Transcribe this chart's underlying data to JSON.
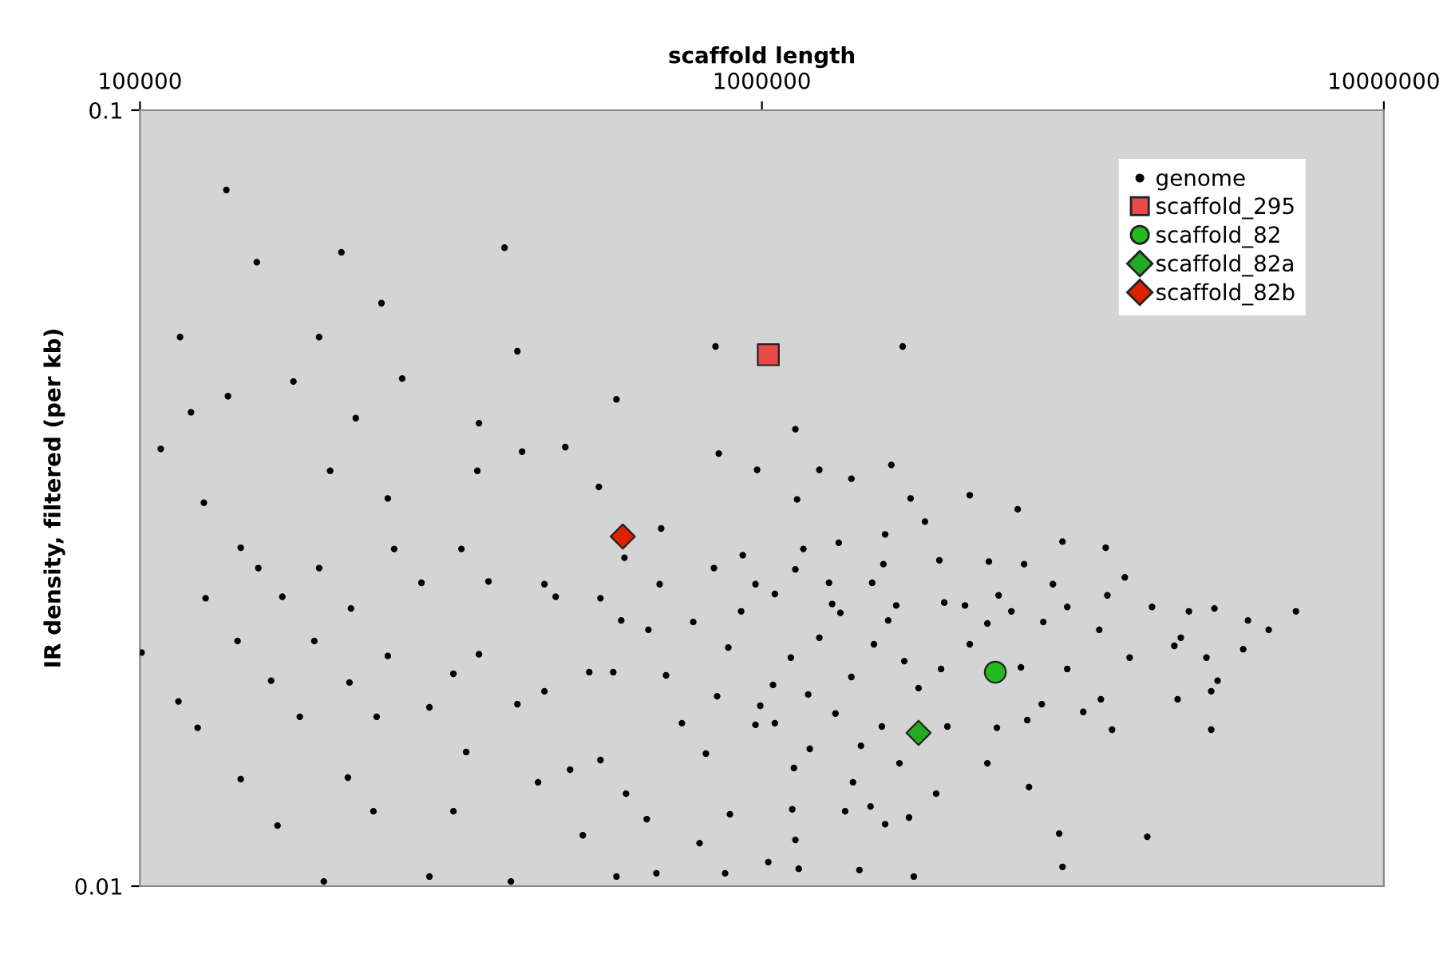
{
  "chart_data": {
    "type": "scatter",
    "xlabel": "scaffold length",
    "ylabel": "IR density, filtered (per kb)",
    "log": "xy",
    "xlim": [
      100000,
      10000000
    ],
    "xticks": [
      100000,
      1000000,
      10000000
    ],
    "ylim": [
      0.01,
      0.1
    ],
    "yticks": [
      0.1,
      0.01
    ],
    "grid": false,
    "legend": "top right",
    "series": [
      {
        "name": "genome",
        "color": "#000000",
        "marker": "circle",
        "x": [
          137700,
          154100,
          210800,
          385600,
          116000,
          194100,
          244500,
          264000,
          404400,
          842200,
          1684000,
          583600,
          138500,
          176500,
          120800,
          108000,
          126700,
          145200,
          155000,
          222300,
          350800,
          202200,
          250300,
          348700,
          411600,
          482900,
          546800,
          688700,
          852300,
          982400,
          601100,
          931600,
          100600,
          115300,
          123800,
          145200,
          166400,
          197500,
          127500,
          143500,
          162500,
          169400,
          194100,
          218400,
          190700,
          217200,
          180700,
          215900,
          240200,
          237300,
          292000,
          256300,
          283500,
          250300,
          292000,
          328700,
          363400,
          319100,
          334600,
          319100,
          394900,
          350800,
          404400,
          447000,
          466000,
          447000,
          436600,
          515300,
          583600,
          491600,
          527700,
          550000,
          594000,
          576700,
          550000,
          604700,
          656800,
          701300,
          743800,
          812800,
          652900,
          676600,
          793900,
          888300,
          872700,
          883000,
          926100,
          775500,
          684800,
          837300,
          976500,
          976500,
          847200,
          1132000,
          1615000,
          1237000,
          1393000,
          1139000,
          1734000,
          2159000,
          2578000,
          1829000,
          1578000,
          1329000,
          1166000,
          1132000,
          1568000,
          1929000,
          2317000,
          2640000,
          3043000,
          3571000,
          3833000,
          3593000,
          2937000,
          2402000,
          1504000,
          1282000,
          1049000,
          1297000,
          1644000,
          1964000,
          2121000,
          2518000,
          3097000,
          4239000,
          4859000,
          5341000,
          7222000,
          6047000,
          6529000,
          5941000,
          4716000,
          5185000,
          5278000,
          5278000,
          4660000,
          3902000,
          3487000,
          3508000,
          3656000,
          3097000,
          2834000,
          2609000,
          2304000,
          2159000,
          1941000,
          1786000,
          1559000,
          1393000,
          1514000,
          1694000,
          1596000,
          1337000,
          1237000,
          1113000,
          1042000,
          994000,
          1049000,
          1187000,
          1313000,
          1443000,
          1664000,
          1987000,
          2387000,
          2671000,
          2818000,
          3286000,
          2304000,
          2688000,
          1906000,
          1724000,
          1194000,
          1126000,
          1401000,
          1495000,
          1578000,
          1361000,
          1119000,
          1132000,
          1024000,
          1146000,
          1435000,
          1755000,
          3006000,
          3043000,
          4165000,
          4604000,
          5404000
        ],
        "values": [
          0.0789,
          0.0637,
          0.0656,
          0.0665,
          0.051,
          0.051,
          0.0564,
          0.0451,
          0.0489,
          0.0496,
          0.0496,
          0.0424,
          0.0428,
          0.0447,
          0.0408,
          0.0366,
          0.0312,
          0.0273,
          0.0257,
          0.0401,
          0.0395,
          0.0343,
          0.0316,
          0.0343,
          0.0363,
          0.0368,
          0.0327,
          0.0289,
          0.0361,
          0.0344,
          0.0265,
          0.0267,
          0.02,
          0.0173,
          0.016,
          0.01374,
          0.01197,
          0.01014,
          0.0235,
          0.0207,
          0.0184,
          0.0236,
          0.0257,
          0.0228,
          0.0207,
          0.0183,
          0.01653,
          0.0138,
          0.01653,
          0.01249,
          0.01029,
          0.0272,
          0.0246,
          0.0198,
          0.017,
          0.0272,
          0.0247,
          0.01878,
          0.01489,
          0.01249,
          0.01014,
          0.0199,
          0.01716,
          0.0245,
          0.0236,
          0.01783,
          0.01361,
          0.01163,
          0.01029,
          0.01413,
          0.01887,
          0.0235,
          0.022,
          0.01887,
          0.01454,
          0.01316,
          0.0214,
          0.01869,
          0.01622,
          0.01482,
          0.0122,
          0.01039,
          0.01136,
          0.01238,
          0.01039,
          0.0203,
          0.0226,
          0.0219,
          0.0245,
          0.0257,
          0.0245,
          0.01614,
          0.01757,
          0.0388,
          0.0349,
          0.0344,
          0.0335,
          0.0315,
          0.0316,
          0.0319,
          0.0306,
          0.0295,
          0.0284,
          0.0277,
          0.0272,
          0.0256,
          0.026,
          0.0263,
          0.0262,
          0.026,
          0.0278,
          0.0273,
          0.025,
          0.0237,
          0.0245,
          0.0237,
          0.0246,
          0.0246,
          0.0238,
          0.0231,
          0.023,
          0.0232,
          0.023,
          0.0226,
          0.0229,
          0.0229,
          0.0226,
          0.0228,
          0.0226,
          0.022,
          0.0214,
          0.0202,
          0.0209,
          0.0197,
          0.01783,
          0.01591,
          0.01741,
          0.0197,
          0.0214,
          0.01741,
          0.01591,
          0.01905,
          0.0219,
          0.01914,
          0.0218,
          0.0205,
          0.01905,
          0.018,
          0.01606,
          0.0186,
          0.0205,
          0.0195,
          0.022,
          0.0225,
          0.0209,
          0.0197,
          0.01817,
          0.01708,
          0.01622,
          0.01766,
          0.01669,
          0.01517,
          0.0144,
          0.01606,
          0.016,
          0.01637,
          0.01716,
          0.01677,
          0.0144,
          0.01342,
          0.01316,
          0.01226,
          0.01503,
          0.0142,
          0.01361,
          0.01267,
          0.01202,
          0.01249,
          0.01256,
          0.01147,
          0.01074,
          0.01053,
          0.01049,
          0.01029,
          0.01169,
          0.01059,
          0.01158,
          0.0204,
          0.0184
        ]
      },
      {
        "name": "scaffold_295",
        "color": "#e84a4a",
        "marker": "square",
        "x": [
          1024000
        ],
        "values": [
          0.0484
        ]
      },
      {
        "name": "scaffold_82",
        "color": "#22bb22",
        "marker": "circle",
        "x": [
          2373000
        ],
        "values": [
          0.01887
        ]
      },
      {
        "name": "scaffold_82a",
        "color": "#22aa22",
        "marker": "diamond",
        "x": [
          1786000
        ],
        "values": [
          0.01576
        ]
      },
      {
        "name": "scaffold_82b",
        "color": "#dd2200",
        "marker": "diamond",
        "x": [
          597500
        ],
        "values": [
          0.02822
        ]
      }
    ]
  }
}
